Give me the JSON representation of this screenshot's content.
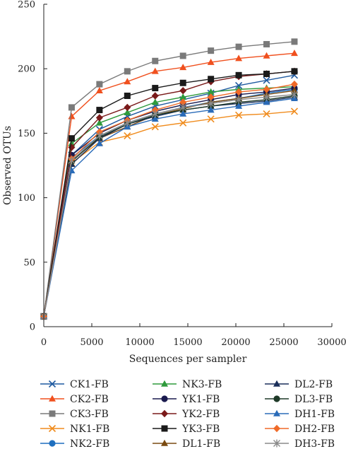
{
  "chart_data": {
    "type": "line",
    "title": "",
    "xlabel": "Sequences per sampler",
    "ylabel": "Observed OTUs",
    "xlim": [
      0,
      30000
    ],
    "ylim": [
      0,
      250
    ],
    "xticks": [
      "0",
      "5000",
      "10000",
      "15000",
      "20000",
      "25000",
      "30000"
    ],
    "yticks": [
      "0",
      "50",
      "100",
      "150",
      "200",
      "250"
    ],
    "grid": false,
    "legend_position": "bottom",
    "x": [
      0,
      2900,
      5800,
      8700,
      11600,
      14500,
      17400,
      20300,
      23200,
      26100
    ],
    "series": [
      {
        "name": "CK1-FB",
        "color": "#1f5aa0",
        "marker": "x",
        "values": [
          8,
          133,
          153,
          163,
          171,
          176,
          181,
          187,
          191,
          195
        ]
      },
      {
        "name": "CK2-FB",
        "color": "#f0501e",
        "marker": "triangle",
        "values": [
          8,
          163,
          183,
          190,
          198,
          201,
          205,
          208,
          210,
          212
        ]
      },
      {
        "name": "CK3-FB",
        "color": "#7a7a7a",
        "marker": "square",
        "values": [
          8,
          170,
          188,
          198,
          206,
          210,
          214,
          217,
          219,
          221
        ]
      },
      {
        "name": "NK1-FB",
        "color": "#f08c1e",
        "marker": "x",
        "values": [
          8,
          127,
          143,
          148,
          155,
          158,
          161,
          164,
          165,
          167
        ]
      },
      {
        "name": "NK2-FB",
        "color": "#1f6fbf",
        "marker": "circle",
        "values": [
          8,
          131,
          148,
          158,
          165,
          170,
          174,
          177,
          181,
          184
        ]
      },
      {
        "name": "NK3-FB",
        "color": "#2e9a3c",
        "marker": "triangle",
        "values": [
          8,
          142,
          158,
          166,
          174,
          178,
          182,
          184,
          185,
          186
        ]
      },
      {
        "name": "YK1-FB",
        "color": "#1a1a4e",
        "marker": "circle",
        "values": [
          8,
          133,
          150,
          160,
          167,
          172,
          176,
          180,
          182,
          185
        ]
      },
      {
        "name": "YK2-FB",
        "color": "#7a1a1a",
        "marker": "diamond",
        "values": [
          8,
          139,
          162,
          170,
          179,
          183,
          190,
          194,
          196,
          198
        ]
      },
      {
        "name": "YK3-FB",
        "color": "#1a1a1a",
        "marker": "square",
        "values": [
          8,
          146,
          168,
          179,
          185,
          189,
          192,
          195,
          196,
          198
        ]
      },
      {
        "name": "DL1-FB",
        "color": "#7a4a10",
        "marker": "triangle",
        "values": [
          8,
          129,
          146,
          155,
          164,
          169,
          174,
          177,
          180,
          183
        ]
      },
      {
        "name": "DL2-FB",
        "color": "#1a2f5a",
        "marker": "triangle",
        "values": [
          8,
          126,
          146,
          157,
          163,
          168,
          171,
          173,
          175,
          178
        ]
      },
      {
        "name": "DL3-FB",
        "color": "#1f3a28",
        "marker": "circle",
        "values": [
          8,
          128,
          147,
          157,
          164,
          168,
          171,
          174,
          176,
          179
        ]
      },
      {
        "name": "DH1-FB",
        "color": "#2a6bb8",
        "marker": "triangle",
        "values": [
          8,
          121,
          142,
          155,
          161,
          165,
          168,
          171,
          174,
          177
        ]
      },
      {
        "name": "DH2-FB",
        "color": "#f06a28",
        "marker": "diamond",
        "values": [
          8,
          130,
          151,
          160,
          168,
          174,
          178,
          182,
          184,
          188
        ]
      },
      {
        "name": "DH3-FB",
        "color": "#8a8a8a",
        "marker": "asterisk",
        "values": [
          8,
          129,
          148,
          158,
          165,
          170,
          173,
          176,
          178,
          180
        ]
      }
    ]
  }
}
